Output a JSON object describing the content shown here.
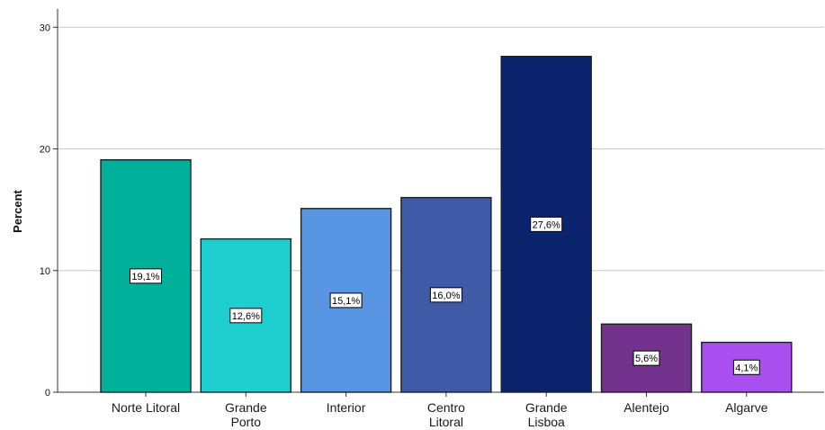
{
  "chart_data": {
    "type": "bar",
    "ylabel": "Percent",
    "xlabel": "",
    "ylim": [
      0,
      31.5
    ],
    "yticks": [
      0,
      10,
      20,
      30
    ],
    "grid": true,
    "categories": [
      [
        "Norte Litoral"
      ],
      [
        "Grande",
        "Porto"
      ],
      [
        "Interior"
      ],
      [
        "Centro",
        "Litoral"
      ],
      [
        "Grande",
        "Lisboa"
      ],
      [
        "Alentejo"
      ],
      [
        "Algarve"
      ]
    ],
    "values": [
      19.1,
      12.6,
      15.1,
      16.0,
      27.6,
      5.6,
      4.1
    ],
    "data_labels": [
      "19,1%",
      "12,6%",
      "15,1%",
      "16,0%",
      "27,6%",
      "5,6%",
      "4,1%"
    ],
    "colors": [
      "#00b09b",
      "#1fcfcf",
      "#5896e3",
      "#3f5ba7",
      "#0c236e",
      "#73328d",
      "#a94fef"
    ]
  }
}
